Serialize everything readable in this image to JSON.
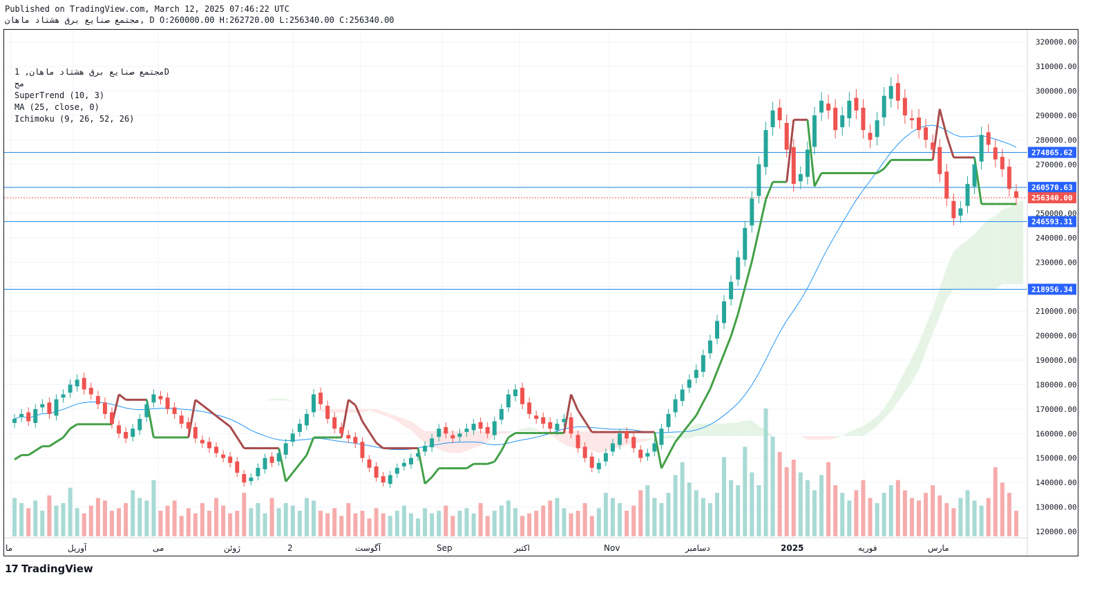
{
  "header": {
    "published": "Published on TradingView.com, March 12, 2025 07:46:22 UTC",
    "ohlc": "مجتمع صنايع برق هشتاد ماهان, D O:260000.00 H:262720.00 L:256340.00 C:256340.00"
  },
  "legend": {
    "symbol": "مجتمع صنايع برق هشتاد ماهان, 1D",
    "line2": "مج",
    "supertrend": "SuperTrend (10, 3)",
    "ma": "MA (25, close, 0)",
    "ichimoku": "Ichimoku (9, 26, 52, 26)"
  },
  "branding": {
    "logo_text": "TradingView",
    "logo_mark": "17"
  },
  "colors": {
    "up": "#26a69a",
    "down": "#ef5350",
    "supertrend_up": "#43a047",
    "supertrend_down": "#a84a4a",
    "ma": "#2196f3",
    "hline": "#1e88e5",
    "cloud_green": "#e6f4e6",
    "cloud_red": "#fde7e7"
  },
  "chart_data": {
    "type": "candlestick",
    "title": "مجتمع صنايع برق هشتاد ماهان, 1D",
    "ylim": [
      118000,
      325000
    ],
    "y_ticks": [
      120000,
      130000,
      140000,
      150000,
      160000,
      170000,
      180000,
      190000,
      200000,
      210000,
      220000,
      230000,
      240000,
      250000,
      260000,
      270000,
      280000,
      290000,
      300000,
      310000,
      320000
    ],
    "x_ticks": [
      "ما",
      "آوريل",
      "مى",
      "ژوئن",
      "2",
      "آگوست",
      "Sep",
      "اكتبر",
      "Nov",
      "دسامبر",
      "2025",
      "فوريه",
      "مارس"
    ],
    "last_close": 256340.0,
    "price_levels": [
      {
        "value": 274865.62,
        "label": "274865.62",
        "kind": "hline"
      },
      {
        "value": 260570.63,
        "label": "260570.63",
        "kind": "hline"
      },
      {
        "value": 256340.0,
        "label": "256340.00",
        "kind": "last"
      },
      {
        "value": 246593.31,
        "label": "246593.31",
        "kind": "hline"
      },
      {
        "value": 218956.34,
        "label": "218956.34",
        "kind": "hline"
      }
    ],
    "close_series": [
      166000,
      168000,
      165000,
      170000,
      172000,
      168000,
      174000,
      176000,
      180000,
      182000,
      178000,
      176000,
      172000,
      168000,
      164000,
      160000,
      158000,
      162000,
      166000,
      172000,
      176000,
      174000,
      170000,
      168000,
      164000,
      162000,
      158000,
      156000,
      154000,
      152000,
      150000,
      148000,
      144000,
      140000,
      142000,
      146000,
      150000,
      148000,
      152000,
      156000,
      160000,
      164000,
      168000,
      176000,
      172000,
      166000,
      162000,
      160000,
      158000,
      156000,
      150000,
      146000,
      142000,
      140000,
      143000,
      146000,
      148000,
      150000,
      152000,
      155000,
      158000,
      162000,
      160000,
      158000,
      160000,
      162000,
      164000,
      162000,
      160000,
      165000,
      170000,
      176000,
      178000,
      172000,
      168000,
      166000,
      164000,
      162000,
      164000,
      166000,
      160000,
      154000,
      150000,
      146000,
      148000,
      152000,
      156000,
      160000,
      158000,
      154000,
      150000,
      152000,
      156000,
      162000,
      168000,
      174000,
      178000,
      182000,
      186000,
      192000,
      198000,
      206000,
      214000,
      222000,
      232000,
      244000,
      256000,
      270000,
      284000,
      292000,
      288000,
      276000,
      262000,
      266000,
      276000,
      290000,
      296000,
      292000,
      284000,
      290000,
      296000,
      292000,
      284000,
      280000,
      288000,
      298000,
      302000,
      296000,
      290000,
      288000,
      284000,
      280000,
      276000,
      266000,
      256000,
      248000,
      252000,
      262000,
      270000,
      282000,
      278000,
      272000,
      268000,
      260000,
      256340
    ],
    "volume_series": [
      0.3,
      0.26,
      0.22,
      0.28,
      0.2,
      0.32,
      0.24,
      0.26,
      0.38,
      0.22,
      0.18,
      0.24,
      0.3,
      0.28,
      0.2,
      0.22,
      0.26,
      0.36,
      0.3,
      0.28,
      0.44,
      0.2,
      0.24,
      0.28,
      0.16,
      0.22,
      0.18,
      0.26,
      0.2,
      0.3,
      0.24,
      0.18,
      0.2,
      0.34,
      0.22,
      0.26,
      0.18,
      0.3,
      0.22,
      0.26,
      0.24,
      0.2,
      0.3,
      0.28,
      0.2,
      0.18,
      0.22,
      0.16,
      0.26,
      0.18,
      0.2,
      0.14,
      0.22,
      0.18,
      0.16,
      0.2,
      0.24,
      0.18,
      0.14,
      0.22,
      0.18,
      0.2,
      0.24,
      0.16,
      0.2,
      0.22,
      0.18,
      0.26,
      0.16,
      0.2,
      0.24,
      0.28,
      0.22,
      0.16,
      0.18,
      0.2,
      0.24,
      0.28,
      0.3,
      0.22,
      0.18,
      0.2,
      0.26,
      0.16,
      0.22,
      0.34,
      0.3,
      0.26,
      0.2,
      0.24,
      0.36,
      0.4,
      0.3,
      0.26,
      0.34,
      0.48,
      0.58,
      0.42,
      0.36,
      0.3,
      0.26,
      0.34,
      0.62,
      0.44,
      0.4,
      0.7,
      0.5,
      0.4,
      1.0,
      0.78,
      0.66,
      0.54,
      0.6,
      0.5,
      0.44,
      0.36,
      0.48,
      0.58,
      0.4,
      0.34,
      0.28,
      0.36,
      0.44,
      0.3,
      0.26,
      0.34,
      0.4,
      0.44,
      0.36,
      0.3,
      0.28,
      0.34,
      0.4,
      0.32,
      0.26,
      0.22,
      0.3,
      0.36,
      0.28,
      0.24,
      0.3,
      0.54,
      0.42,
      0.34,
      0.2
    ]
  }
}
